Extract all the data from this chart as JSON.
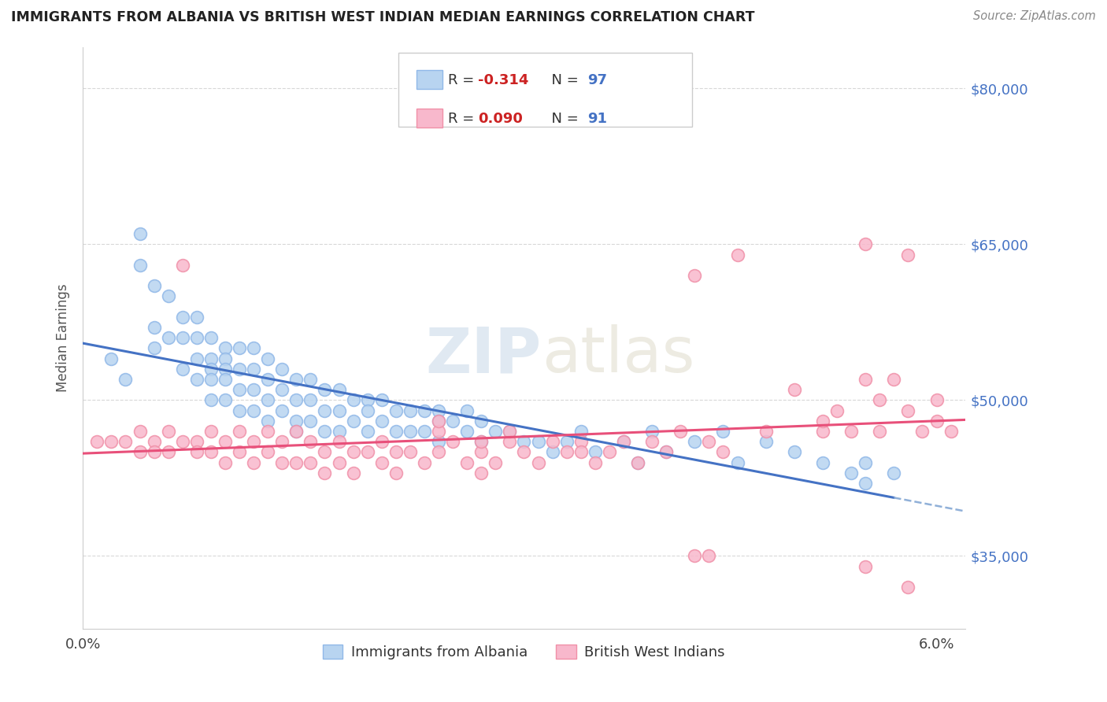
{
  "title": "IMMIGRANTS FROM ALBANIA VS BRITISH WEST INDIAN MEDIAN EARNINGS CORRELATION CHART",
  "source": "Source: ZipAtlas.com",
  "ylabel": "Median Earnings",
  "xlim": [
    0.0,
    0.062
  ],
  "ylim": [
    28000,
    84000
  ],
  "xtick_positions": [
    0.0,
    0.01,
    0.02,
    0.03,
    0.04,
    0.05,
    0.06
  ],
  "xticklabels": [
    "0.0%",
    "",
    "",
    "",
    "",
    "",
    "6.0%"
  ],
  "ytick_positions": [
    35000,
    50000,
    65000,
    80000
  ],
  "ytick_labels": [
    "$35,000",
    "$50,000",
    "$65,000",
    "$80,000"
  ],
  "bg_color": "#ffffff",
  "grid_color": "#d8d8d8",
  "albania_face_color": "#b8d4f0",
  "albania_edge_color": "#90b8e8",
  "bwi_face_color": "#f8b8cc",
  "bwi_edge_color": "#f090a8",
  "albania_line_color": "#4472c4",
  "bwi_line_color": "#e8507a",
  "albania_dash_color": "#90b0d8",
  "albania_R": -0.314,
  "albania_N": 97,
  "bwi_R": 0.09,
  "bwi_N": 91,
  "albania_legend": "Immigrants from Albania",
  "bwi_legend": "British West Indians",
  "watermark_text": "ZIPatlas",
  "watermark_color": "#d0e4f4",
  "legend_box_color": "#f0f4fa",
  "legend_r_color": "#cc0000",
  "legend_n_color": "#4472c4"
}
